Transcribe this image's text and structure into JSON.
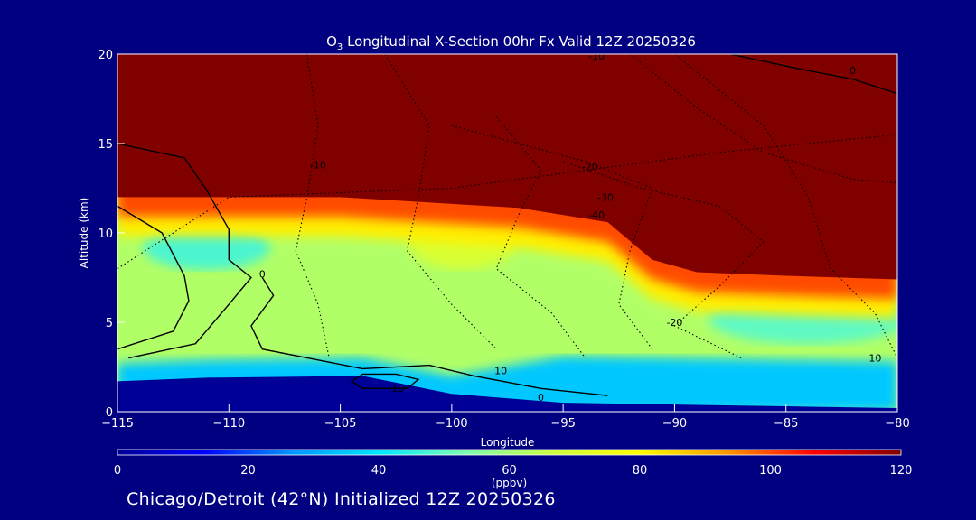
{
  "chart_data": {
    "type": "heatmap",
    "title_prefix": "O",
    "title_subscript": "3",
    "title_rest": " Longitudinal X-Section 00hr  Fx Valid 12Z 20250326",
    "xlabel": "Longitude",
    "ylabel": "Altitude (km)",
    "xlim": [
      -115,
      -80
    ],
    "ylim": [
      0,
      20
    ],
    "x_ticks": [
      -115,
      -110,
      -105,
      -100,
      -95,
      -90,
      -85,
      -80
    ],
    "x_tick_labels": [
      "−115",
      "−110",
      "−105",
      "−100",
      "−95",
      "−90",
      "−85",
      "−80"
    ],
    "y_ticks": [
      0,
      5,
      10,
      15,
      20
    ],
    "y_tick_labels": [
      "0",
      "5",
      "10",
      "15",
      "20"
    ],
    "colorbar": {
      "range": [
        0,
        120
      ],
      "ticks": [
        0,
        20,
        40,
        60,
        80,
        100,
        120
      ],
      "tick_labels": [
        "0",
        "20",
        "40",
        "60",
        "80",
        "100",
        "120"
      ],
      "unit_label": "(ppbv)",
      "colors": [
        "#000096",
        "#0000ff",
        "#0096ff",
        "#00e6ff",
        "#7fffb0",
        "#ccff40",
        "#ffff00",
        "#ff9600",
        "#ff0000",
        "#800000"
      ]
    },
    "ozone_field": {
      "tropopause_height_km": [
        {
          "lon": -115,
          "z": 12.0
        },
        {
          "lon": -105,
          "z": 12.0
        },
        {
          "lon": -97,
          "z": 11.4
        },
        {
          "lon": -93,
          "z": 10.6
        },
        {
          "lon": -91,
          "z": 8.5
        },
        {
          "lon": -89,
          "z": 7.8
        },
        {
          "lon": -85,
          "z": 7.6
        },
        {
          "lon": -80,
          "z": 7.4
        }
      ],
      "terrain_height_km": [
        {
          "lon": -115,
          "z": 1.7
        },
        {
          "lon": -111,
          "z": 1.9
        },
        {
          "lon": -104,
          "z": 2.0
        },
        {
          "lon": -100,
          "z": 1.0
        },
        {
          "lon": -95,
          "z": 0.5
        },
        {
          "lon": -85,
          "z": 0.3
        },
        {
          "lon": -80,
          "z": 0.2
        }
      ],
      "stratosphere_ppbv": 120,
      "mid_troposphere_ppbv": 62,
      "boundary_layer_ppbv": 35
    },
    "contours": [
      {
        "level": 0,
        "labels_at": [
          {
            "lon": -108.5,
            "z": 7.5
          },
          {
            "lon": -96,
            "z": 0.6
          },
          {
            "lon": -82,
            "z": 18.9
          }
        ]
      },
      {
        "level": -10,
        "labels_at": [
          {
            "lon": -106,
            "z": 13.6
          },
          {
            "lon": -93.5,
            "z": 19.7
          },
          {
            "lon": -102.5,
            "z": 1.1
          }
        ]
      },
      {
        "level": 10,
        "labels_at": [
          {
            "lon": -97.8,
            "z": 2.1
          },
          {
            "lon": -81,
            "z": 2.8
          }
        ]
      },
      {
        "level": -20,
        "labels_at": [
          {
            "lon": -93.8,
            "z": 13.5
          },
          {
            "lon": -90,
            "z": 4.8
          }
        ]
      },
      {
        "level": -30,
        "labels_at": [
          {
            "lon": -93.1,
            "z": 11.8
          }
        ]
      },
      {
        "level": -40,
        "labels_at": [
          {
            "lon": -93.5,
            "z": 10.8
          }
        ]
      }
    ]
  },
  "footer": {
    "text": "Chicago/Detroit (42°N) Initialized 12Z 20250326"
  }
}
